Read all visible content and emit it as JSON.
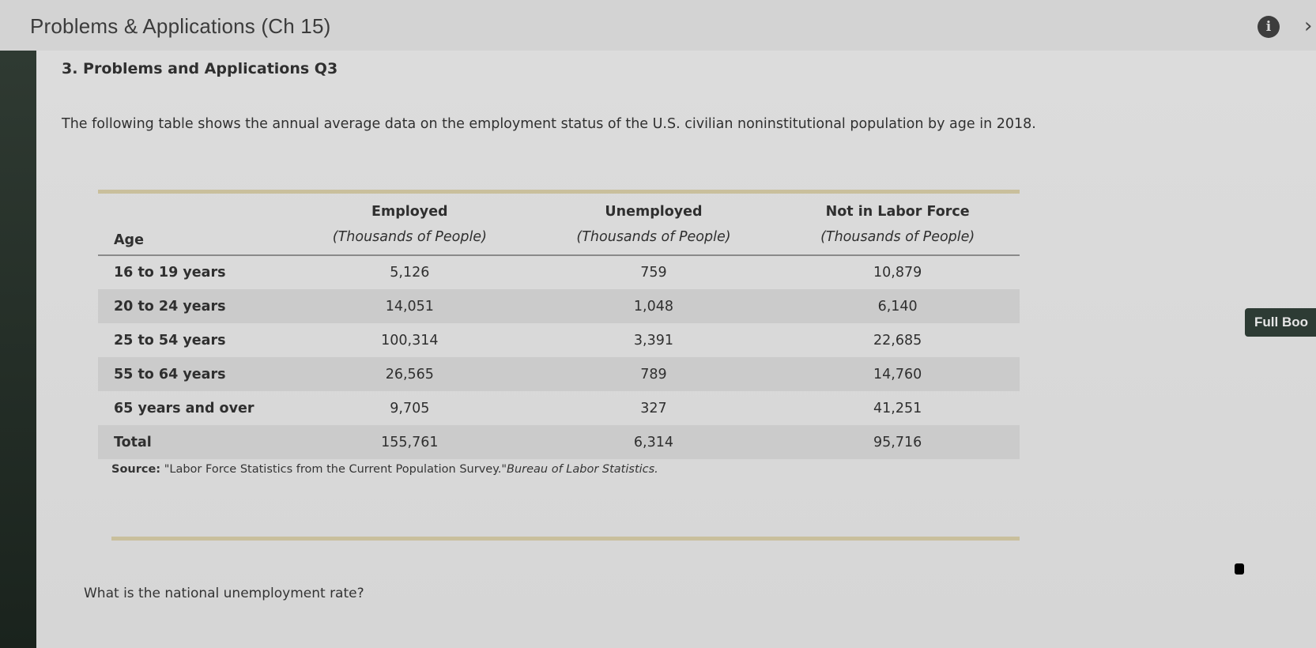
{
  "window": {
    "title": "Problems & Applications (Ch 15)",
    "info_icon": "info-icon",
    "close_icon": "close-icon",
    "close_glyph": "›",
    "info_glyph": "i"
  },
  "question": {
    "heading": "3. Problems and Applications Q3",
    "prompt": "The following table shows the annual average data on the employment status of the U.S. civilian noninstitutional population by age in 2018.",
    "ask": "What is the national unemployment rate?"
  },
  "table": {
    "headers": {
      "age": "Age",
      "employed_top": "Employed",
      "employed_bottom": "(Thousands of People)",
      "unemployed_top": "Unemployed",
      "unemployed_bottom": "(Thousands of People)",
      "nilf_top": "Not in Labor Force",
      "nilf_bottom": "(Thousands of People)"
    },
    "rows": [
      {
        "age": "16 to 19 years",
        "employed": "5,126",
        "unemployed": "759",
        "nilf": "10,879"
      },
      {
        "age": "20 to 24 years",
        "employed": "14,051",
        "unemployed": "1,048",
        "nilf": "6,140"
      },
      {
        "age": "25 to 54 years",
        "employed": "100,314",
        "unemployed": "3,391",
        "nilf": "22,685"
      },
      {
        "age": "55 to 64 years",
        "employed": "26,565",
        "unemployed": "789",
        "nilf": "14,760"
      },
      {
        "age": "65 years and over",
        "employed": "9,705",
        "unemployed": "327",
        "nilf": "41,251"
      },
      {
        "age": "Total",
        "employed": "155,761",
        "unemployed": "6,314",
        "nilf": "95,716"
      }
    ]
  },
  "source": {
    "label": "Source:",
    "text": "\"Labor Force Statistics from the Current Population Survey.\"",
    "publisher": "Bureau of Labor Statistics."
  },
  "side": {
    "full_book_label": "Full Boo"
  },
  "colors": {
    "accent_rule": "#c9bf9c",
    "button_dark": "#2d3b34"
  }
}
